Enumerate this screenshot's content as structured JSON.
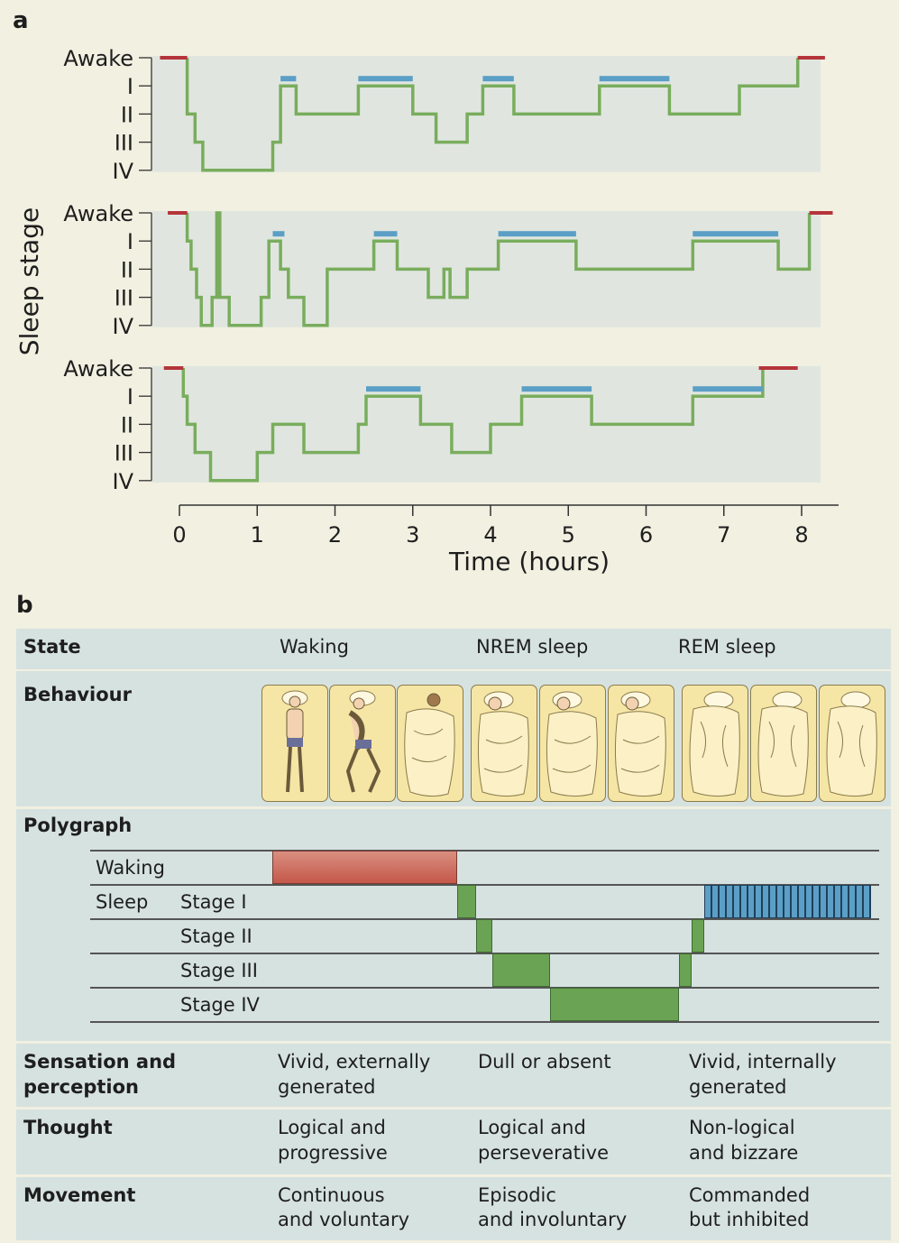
{
  "panel_a": {
    "letter": "a",
    "y_axis_label": "Sleep stage",
    "x_axis_label": "Time (hours)",
    "stage_labels": [
      "Awake",
      "I",
      "II",
      "III",
      "IV"
    ],
    "x_ticks": [
      "0",
      "1",
      "2",
      "3",
      "4",
      "5",
      "6",
      "7",
      "8"
    ],
    "colors": {
      "awake": "#b5343a",
      "nrem": "#79ad5d",
      "rem": "#5b9fc6",
      "plot_bg": "#e0e6df"
    },
    "chart_data": [
      {
        "type": "line",
        "x_unit": "hours",
        "stage_code": {
          "Awake": 0,
          "I": 1,
          "II": 2,
          "III": 3,
          "IV": 4
        },
        "awake_segments": [
          [
            -0.25,
            0.1
          ],
          [
            7.95,
            8.3
          ]
        ],
        "rem_segments": [
          [
            1.3,
            1.5
          ],
          [
            2.3,
            3.0
          ],
          [
            3.9,
            4.3
          ],
          [
            5.4,
            6.3
          ]
        ],
        "hypnogram": [
          [
            0.1,
            0
          ],
          [
            0.1,
            2
          ],
          [
            0.2,
            2
          ],
          [
            0.2,
            3
          ],
          [
            0.3,
            3
          ],
          [
            0.3,
            4
          ],
          [
            1.2,
            4
          ],
          [
            1.2,
            3
          ],
          [
            1.3,
            3
          ],
          [
            1.3,
            1
          ],
          [
            1.5,
            1
          ],
          [
            1.5,
            2
          ],
          [
            2.3,
            2
          ],
          [
            2.3,
            1
          ],
          [
            3.0,
            1
          ],
          [
            3.0,
            2
          ],
          [
            3.3,
            2
          ],
          [
            3.3,
            3
          ],
          [
            3.7,
            3
          ],
          [
            3.7,
            2
          ],
          [
            3.9,
            2
          ],
          [
            3.9,
            1
          ],
          [
            4.3,
            1
          ],
          [
            4.3,
            2
          ],
          [
            5.4,
            2
          ],
          [
            5.4,
            1
          ],
          [
            6.3,
            1
          ],
          [
            6.3,
            2
          ],
          [
            7.2,
            2
          ],
          [
            7.2,
            1
          ],
          [
            7.95,
            1
          ],
          [
            7.95,
            0
          ]
        ]
      },
      {
        "type": "line",
        "x_unit": "hours",
        "stage_code": {
          "Awake": 0,
          "I": 1,
          "II": 2,
          "III": 3,
          "IV": 4
        },
        "awake_segments": [
          [
            -0.15,
            0.1
          ],
          [
            8.1,
            8.4
          ]
        ],
        "rem_segments": [
          [
            1.2,
            1.35
          ],
          [
            2.5,
            2.8
          ],
          [
            4.1,
            5.1
          ],
          [
            6.6,
            7.7
          ]
        ],
        "hypnogram": [
          [
            0.1,
            0
          ],
          [
            0.1,
            1
          ],
          [
            0.15,
            1
          ],
          [
            0.15,
            2
          ],
          [
            0.22,
            2
          ],
          [
            0.22,
            3
          ],
          [
            0.28,
            3
          ],
          [
            0.28,
            4
          ],
          [
            0.42,
            4
          ],
          [
            0.42,
            3
          ],
          [
            0.48,
            3
          ],
          [
            0.48,
            0
          ],
          [
            0.52,
            0
          ],
          [
            0.52,
            3
          ],
          [
            0.58,
            3
          ],
          [
            0.58,
            3
          ],
          [
            0.64,
            3
          ],
          [
            0.64,
            4
          ],
          [
            1.05,
            4
          ],
          [
            1.05,
            3
          ],
          [
            1.15,
            3
          ],
          [
            1.15,
            1
          ],
          [
            1.3,
            1
          ],
          [
            1.3,
            2
          ],
          [
            1.4,
            2
          ],
          [
            1.4,
            3
          ],
          [
            1.6,
            3
          ],
          [
            1.6,
            4
          ],
          [
            1.9,
            4
          ],
          [
            1.9,
            2
          ],
          [
            2.5,
            2
          ],
          [
            2.5,
            1
          ],
          [
            2.8,
            1
          ],
          [
            2.8,
            2
          ],
          [
            3.2,
            2
          ],
          [
            3.2,
            3
          ],
          [
            3.4,
            3
          ],
          [
            3.4,
            2
          ],
          [
            3.48,
            2
          ],
          [
            3.48,
            3
          ],
          [
            3.7,
            3
          ],
          [
            3.7,
            2
          ],
          [
            4.1,
            2
          ],
          [
            4.1,
            1
          ],
          [
            5.1,
            1
          ],
          [
            5.1,
            2
          ],
          [
            6.6,
            2
          ],
          [
            6.6,
            1
          ],
          [
            7.7,
            1
          ],
          [
            7.7,
            2
          ],
          [
            8.1,
            2
          ],
          [
            8.1,
            0
          ]
        ]
      },
      {
        "type": "line",
        "x_unit": "hours",
        "stage_code": {
          "Awake": 0,
          "I": 1,
          "II": 2,
          "III": 3,
          "IV": 4
        },
        "awake_segments": [
          [
            -0.2,
            0.05
          ],
          [
            7.45,
            7.95
          ]
        ],
        "rem_segments": [
          [
            2.4,
            3.1
          ],
          [
            4.4,
            5.3
          ],
          [
            6.6,
            7.5
          ]
        ],
        "hypnogram": [
          [
            0.05,
            0
          ],
          [
            0.05,
            1
          ],
          [
            0.1,
            1
          ],
          [
            0.1,
            2
          ],
          [
            0.2,
            2
          ],
          [
            0.2,
            3
          ],
          [
            0.4,
            3
          ],
          [
            0.4,
            4
          ],
          [
            1.0,
            4
          ],
          [
            1.0,
            3
          ],
          [
            1.2,
            3
          ],
          [
            1.2,
            2
          ],
          [
            1.6,
            2
          ],
          [
            1.6,
            3
          ],
          [
            2.3,
            3
          ],
          [
            2.3,
            2
          ],
          [
            2.4,
            2
          ],
          [
            2.4,
            1
          ],
          [
            3.1,
            1
          ],
          [
            3.1,
            2
          ],
          [
            3.5,
            2
          ],
          [
            3.5,
            3
          ],
          [
            4.0,
            3
          ],
          [
            4.0,
            2
          ],
          [
            4.4,
            2
          ],
          [
            4.4,
            1
          ],
          [
            5.3,
            1
          ],
          [
            5.3,
            2
          ],
          [
            6.6,
            2
          ],
          [
            6.6,
            1
          ],
          [
            7.5,
            1
          ],
          [
            7.5,
            0
          ]
        ]
      }
    ]
  },
  "panel_b": {
    "letter": "b",
    "state": {
      "title": "State",
      "waking": "Waking",
      "nrem": "NREM sleep",
      "rem": "REM sleep"
    },
    "behaviour": {
      "title": "Behaviour"
    },
    "polygraph": {
      "title": "Polygraph",
      "waking": "Waking",
      "sleep": "Sleep",
      "stage_1": "Stage I",
      "stage_2": "Stage II",
      "stage_3": "Stage III",
      "stage_4": "Stage IV",
      "colors": {
        "waking": "#c4574a",
        "nrem": "#6aa353",
        "rem": "#5b9fc6"
      }
    },
    "sensation": {
      "title_line1": "Sensation and",
      "title_line2": "perception",
      "waking_1": "Vivid, externally",
      "waking_2": "generated",
      "nrem_1": "Dull or absent",
      "rem_1": "Vivid, internally",
      "rem_2": "generated"
    },
    "thought": {
      "title": "Thought",
      "waking_1": "Logical and",
      "waking_2": "progressive",
      "nrem_1": "Logical and",
      "nrem_2": "perseverative",
      "rem_1": "Non-logical",
      "rem_2": "and bizzare"
    },
    "movement": {
      "title": "Movement",
      "waking_1": "Continuous",
      "waking_2": "and voluntary",
      "nrem_1": "Episodic",
      "nrem_2": "and involuntary",
      "rem_1": "Commanded",
      "rem_2": "but inhibited"
    }
  }
}
